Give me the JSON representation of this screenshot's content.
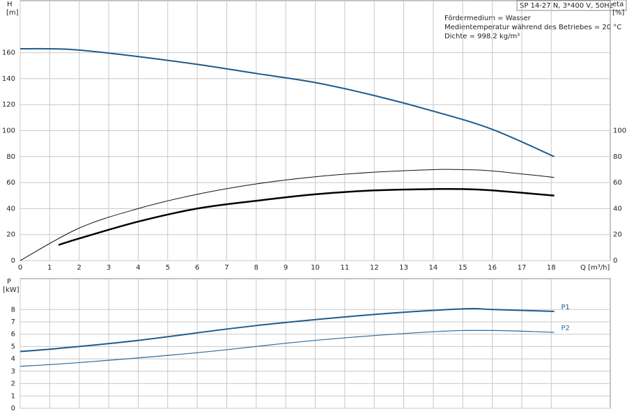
{
  "chart_data": [
    {
      "type": "line",
      "title": "SP 14-27 N, 3*400 V, 50Hz",
      "annotations": [
        "Fördermedium = Wasser",
        "Medientemperatur während des Betriebes = 20 °C",
        "Dichte = 998.2 kg/m³"
      ],
      "y_label": "H",
      "y_unit": "[m]",
      "y2_label": "eta",
      "y2_unit": "[%]",
      "x_label": "Q [m³/h]",
      "xlim": [
        0,
        20
      ],
      "xticks": [
        0,
        1,
        2,
        3,
        4,
        5,
        6,
        7,
        8,
        9,
        10,
        11,
        12,
        13,
        14,
        15,
        16,
        17,
        18
      ],
      "ylim": [
        0,
        200
      ],
      "yticks": [
        0,
        20,
        40,
        60,
        80,
        100,
        120,
        140,
        160
      ],
      "y2lim": [
        0,
        200
      ],
      "y2ticks": [
        0,
        20,
        40,
        60,
        80,
        100
      ],
      "grid": true,
      "series": [
        {
          "color": "#1f5a8a",
          "line_width": 2,
          "x": [
            0,
            1,
            2,
            4,
            6,
            8,
            10,
            12,
            14,
            16,
            18.1
          ],
          "values": [
            163,
            163,
            162,
            157,
            151,
            144,
            137,
            127,
            115,
            101,
            80
          ]
        },
        {
          "color": "#111111",
          "line_width": 1,
          "axis": "y2",
          "x": [
            0,
            2,
            4,
            6,
            8,
            10,
            12,
            14,
            15,
            16,
            18.1
          ],
          "values": [
            0,
            25,
            40,
            51,
            59,
            64.5,
            68,
            70,
            70,
            69,
            64
          ]
        },
        {
          "color": "#000000",
          "line_width": 2.5,
          "axis": "y2",
          "x": [
            1.3,
            2,
            4,
            6,
            8,
            10,
            12,
            14,
            15,
            16,
            18.1
          ],
          "values": [
            12,
            17,
            30,
            40,
            46,
            51,
            54,
            55,
            55,
            54,
            50
          ]
        }
      ]
    },
    {
      "type": "line",
      "y_label": "P",
      "y_unit": "[kW]",
      "xlim": [
        0,
        20
      ],
      "ylim": [
        0,
        10.5
      ],
      "yticks": [
        0,
        1,
        2,
        3,
        4,
        5,
        6,
        7,
        8
      ],
      "grid": true,
      "series": [
        {
          "name": "P1",
          "color": "#1f5a8a",
          "line_width": 2,
          "x": [
            0,
            1.3,
            4,
            8,
            12,
            15,
            16,
            18.1
          ],
          "values": [
            4.6,
            4.85,
            5.5,
            6.7,
            7.6,
            8.05,
            8.0,
            7.85
          ]
        },
        {
          "name": "P2",
          "color": "#2a6a9e",
          "line_width": 1.2,
          "x": [
            0,
            2,
            6,
            10,
            14,
            16,
            18.1
          ],
          "values": [
            3.4,
            3.7,
            4.5,
            5.5,
            6.2,
            6.3,
            6.15
          ]
        }
      ]
    }
  ]
}
